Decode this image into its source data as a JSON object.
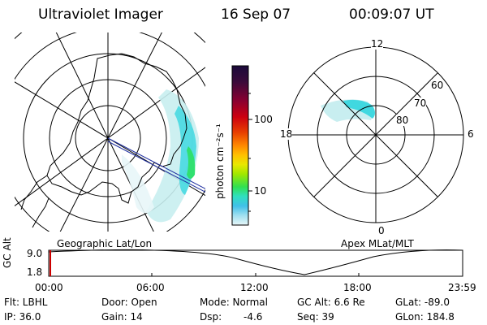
{
  "header": {
    "instrument": "Ultraviolet Imager",
    "date": "16 Sep 07",
    "time": "00:09:07 UT"
  },
  "left_panel": {
    "caption": "Geographic Lat/Lon"
  },
  "right_panel": {
    "caption": "Apex MLat/MLT",
    "mlt_labels": {
      "top": "12",
      "left": "18",
      "right": "6",
      "bottom": "0"
    },
    "lat_labels": [
      "60",
      "70",
      "80"
    ]
  },
  "colorbar": {
    "unit_label": "photon cm⁻²s⁻¹",
    "ticks": [
      "100",
      "10"
    ],
    "colors": [
      "#1a0a3a",
      "#3a0a3a",
      "#8a0030",
      "#cc0010",
      "#e84000",
      "#ff8800",
      "#ffc000",
      "#e8e800",
      "#a0e800",
      "#30e050",
      "#30e0c0",
      "#40c0e8",
      "#a0e0f0",
      "#e8f6f8"
    ]
  },
  "altitude_plot": {
    "ylabel": "GC Alt",
    "yticks": [
      "9.0",
      "1.8"
    ],
    "xticks": [
      "00:00",
      "06:00",
      "12:00",
      "18:00",
      "23:59"
    ]
  },
  "info": {
    "row1": {
      "flt": "Flt: LBHL",
      "door": "Door: Open",
      "mode": "Mode: Normal",
      "gc_alt": "GC Alt: 6.6 Re",
      "glat": "GLat: -89.0"
    },
    "row2": {
      "ip": "IP: 36.0",
      "gain": "Gain: 14",
      "dsp_label": "Dsp:",
      "dsp_value": "-4.6",
      "seq": "Seq: 39",
      "glon": "GLon: 184.8"
    }
  },
  "colors": {
    "aurora_green": "#30e070",
    "aurora_cyan": "#40d8e0",
    "aurora_pale": "#c8eef0",
    "marker_red": "#cc0000"
  }
}
